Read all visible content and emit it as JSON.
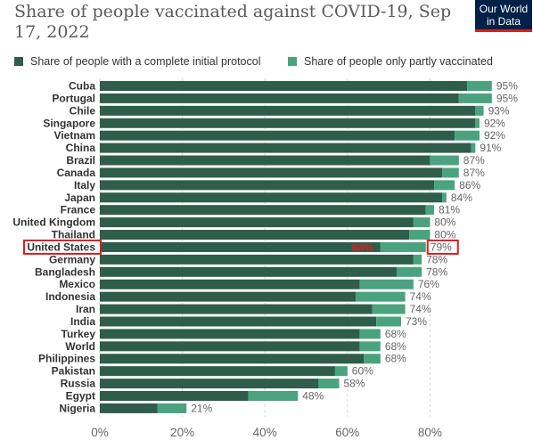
{
  "header": {
    "title": "Share of people vaccinated against COVID-19, Sep 17, 2022",
    "logo_line1": "Our World",
    "logo_line2": "in Data"
  },
  "legend": [
    {
      "label": "Share of people with a complete initial protocol",
      "color": "#2e5d4b"
    },
    {
      "label": "Share of people only partly vaccinated",
      "color": "#4aa37e"
    }
  ],
  "chart_data": {
    "type": "bar",
    "orientation": "horizontal",
    "stacked": true,
    "title": "Share of people vaccinated against COVID-19, Sep 17, 2022",
    "categories": [
      "Cuba",
      "Portugal",
      "Chile",
      "Singapore",
      "Vietnam",
      "China",
      "Brazil",
      "Canada",
      "Italy",
      "Japan",
      "France",
      "United Kingdom",
      "Thailand",
      "United States",
      "Germany",
      "Bangladesh",
      "Mexico",
      "Indonesia",
      "Iran",
      "India",
      "Turkey",
      "World",
      "Philippines",
      "Pakistan",
      "Russia",
      "Egypt",
      "Nigeria"
    ],
    "series": [
      {
        "name": "Share of people with a complete initial protocol",
        "color": "#2e5d4b",
        "values": [
          89,
          87,
          91,
          91,
          86,
          90,
          80,
          83,
          81,
          83,
          79,
          76,
          75,
          68,
          76,
          72,
          63,
          62,
          66,
          67,
          63,
          63,
          64,
          57,
          53,
          36,
          14
        ]
      },
      {
        "name": "Share of people only partly vaccinated",
        "color": "#4aa37e",
        "values": [
          6,
          8,
          2,
          1,
          6,
          1,
          7,
          4,
          5,
          1,
          2,
          4,
          5,
          11,
          2,
          6,
          13,
          12,
          8,
          6,
          5,
          5,
          4,
          3,
          5,
          12,
          7
        ]
      }
    ],
    "totals": [
      "95%",
      "95%",
      "93%",
      "92%",
      "92%",
      "91%",
      "87%",
      "87%",
      "86%",
      "84%",
      "81%",
      "80%",
      "80%",
      "79%",
      "78%",
      "78%",
      "76%",
      "74%",
      "74%",
      "73%",
      "68%",
      "68%",
      "68%",
      "60%",
      "58%",
      "48%",
      "21%"
    ],
    "annotation": {
      "category": "United States",
      "text": "68%",
      "color": "#e11d1d"
    },
    "xticks": [
      "0%",
      "20%",
      "40%",
      "60%",
      "80%"
    ],
    "xlim": [
      0,
      100
    ],
    "grid": true
  }
}
